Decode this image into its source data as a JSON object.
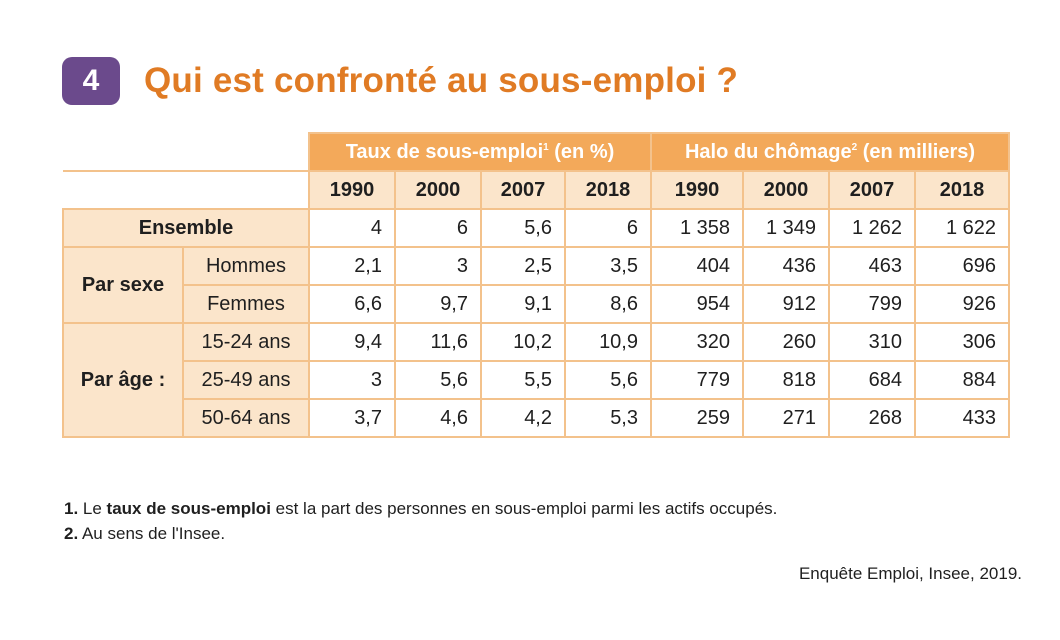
{
  "header": {
    "number": "4",
    "title": "Qui est confronté au sous-emploi ?"
  },
  "table": {
    "group1": {
      "label": "Taux de sous-emploi",
      "note": "1",
      "unit": " (en %)"
    },
    "group2": {
      "label": "Halo du chômage",
      "note": "2",
      "unit": " (en milliers)"
    },
    "years": [
      "1990",
      "2000",
      "2007",
      "2018",
      "1990",
      "2000",
      "2007",
      "2018"
    ],
    "categories": {
      "ensemble": "Ensemble",
      "sexe": "Par sexe",
      "age": "Par âge :"
    },
    "rows": [
      {
        "label": "Ensemble",
        "values": [
          "4",
          "6",
          "5,6",
          "6",
          "1 358",
          "1 349",
          "1 262",
          "1 622"
        ]
      },
      {
        "label": "Hommes",
        "values": [
          "2,1",
          "3",
          "2,5",
          "3,5",
          "404",
          "436",
          "463",
          "696"
        ]
      },
      {
        "label": "Femmes",
        "values": [
          "6,6",
          "9,7",
          "9,1",
          "8,6",
          "954",
          "912",
          "799",
          "926"
        ]
      },
      {
        "label": "15-24 ans",
        "values": [
          "9,4",
          "11,6",
          "10,2",
          "10,9",
          "320",
          "260",
          "310",
          "306"
        ]
      },
      {
        "label": "25-49 ans",
        "values": [
          "3",
          "5,6",
          "5,5",
          "5,6",
          "779",
          "818",
          "684",
          "884"
        ]
      },
      {
        "label": "50-64 ans",
        "values": [
          "3,7",
          "4,6",
          "4,2",
          "5,3",
          "259",
          "271",
          "268",
          "433"
        ]
      }
    ]
  },
  "notes": {
    "n1_num": "1.",
    "n1_pre": " Le ",
    "n1_bold": "taux de sous-emploi",
    "n1_post": " est la part des personnes en sous-emploi parmi les actifs occupés.",
    "n2_num": "2.",
    "n2_text": " Au sens de l'Insee."
  },
  "source": "Enquête Emploi, Insee, 2019."
}
